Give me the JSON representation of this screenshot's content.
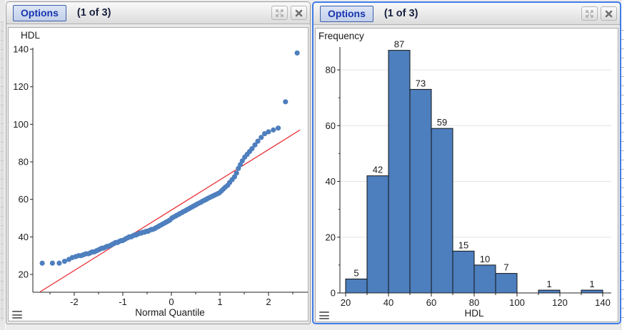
{
  "panels": [
    {
      "id": "qq",
      "header": {
        "options": "Options",
        "counter": "(1 of 3)"
      }
    },
    {
      "id": "hist",
      "header": {
        "options": "Options",
        "counter": "(1 of 3)"
      }
    }
  ],
  "icons": {
    "expand": "expand-arrows-icon",
    "close": "close-icon",
    "menu": "hamburger-menu-icon"
  },
  "colors": {
    "selected_panel_border": "#3f7ce8",
    "marker_blue": "#4e7fbe",
    "bar_blue": "#4d7ebd",
    "ref_line_red": "#e8262d",
    "options_text": "#1634ae"
  },
  "chart_data": [
    {
      "type": "scatter",
      "title": "HDL",
      "xlabel": "Normal Quantile",
      "ylabel": "HDL",
      "xlim": [
        -2.85,
        2.82
      ],
      "ylim": [
        10,
        145
      ],
      "x_ticks": [
        -2,
        -1,
        0,
        1,
        2
      ],
      "x_minor_ticks": [
        -2.5,
        -1.5,
        -0.5,
        0.5,
        1.5,
        2.5
      ],
      "y_ticks": [
        20,
        40,
        60,
        80,
        100,
        120,
        140
      ],
      "grid": false,
      "legend": "none",
      "marker_color": "#4e7fbe",
      "ref_line": {
        "color": "#e8262d",
        "x1": -2.7,
        "y1": 10.8,
        "x2": 2.65,
        "y2": 97
      },
      "points": [
        [
          -2.66,
          26
        ],
        [
          -2.45,
          26
        ],
        [
          -2.31,
          26
        ],
        [
          -2.2,
          27
        ],
        [
          -2.11,
          28
        ],
        [
          -2.04,
          29
        ],
        [
          -1.97,
          29.5
        ],
        [
          -1.91,
          30
        ],
        [
          -1.86,
          30
        ],
        [
          -1.81,
          30.5
        ],
        [
          -1.76,
          31
        ],
        [
          -1.71,
          31
        ],
        [
          -1.67,
          31.5
        ],
        [
          -1.63,
          32
        ],
        [
          -1.59,
          32
        ],
        [
          -1.55,
          32.5
        ],
        [
          -1.51,
          33
        ],
        [
          -1.47,
          33.5
        ],
        [
          -1.43,
          34
        ],
        [
          -1.4,
          34
        ],
        [
          -1.36,
          34.5
        ],
        [
          -1.32,
          35
        ],
        [
          -1.29,
          35
        ],
        [
          -1.25,
          35.5
        ],
        [
          -1.22,
          36
        ],
        [
          -1.18,
          36.5
        ],
        [
          -1.15,
          37
        ],
        [
          -1.11,
          37
        ],
        [
          -1.08,
          37.5
        ],
        [
          -1.04,
          38
        ],
        [
          -1.01,
          38
        ],
        [
          -0.97,
          38.5
        ],
        [
          -0.94,
          39
        ],
        [
          -0.9,
          39.5
        ],
        [
          -0.87,
          40
        ],
        [
          -0.83,
          40
        ],
        [
          -0.8,
          40.5
        ],
        [
          -0.76,
          41
        ],
        [
          -0.73,
          41
        ],
        [
          -0.69,
          41.5
        ],
        [
          -0.66,
          42
        ],
        [
          -0.62,
          42
        ],
        [
          -0.59,
          42.5
        ],
        [
          -0.55,
          42.5
        ],
        [
          -0.52,
          43
        ],
        [
          -0.48,
          43
        ],
        [
          -0.45,
          43.5
        ],
        [
          -0.41,
          44
        ],
        [
          -0.38,
          44
        ],
        [
          -0.34,
          44.5
        ],
        [
          -0.31,
          45
        ],
        [
          -0.27,
          45.5
        ],
        [
          -0.24,
          46
        ],
        [
          -0.2,
          46.5
        ],
        [
          -0.17,
          47
        ],
        [
          -0.13,
          47.5
        ],
        [
          -0.1,
          48
        ],
        [
          -0.06,
          48.5
        ],
        [
          -0.03,
          49
        ],
        [
          0.01,
          50
        ],
        [
          0.04,
          50.5
        ],
        [
          0.08,
          51
        ],
        [
          0.11,
          51.5
        ],
        [
          0.15,
          52
        ],
        [
          0.18,
          52.5
        ],
        [
          0.22,
          53
        ],
        [
          0.25,
          53.5
        ],
        [
          0.29,
          54
        ],
        [
          0.32,
          54.5
        ],
        [
          0.36,
          55
        ],
        [
          0.39,
          55.5
        ],
        [
          0.43,
          56
        ],
        [
          0.46,
          56.5
        ],
        [
          0.5,
          57
        ],
        [
          0.53,
          57.5
        ],
        [
          0.57,
          58
        ],
        [
          0.61,
          58.5
        ],
        [
          0.64,
          59
        ],
        [
          0.68,
          59.5
        ],
        [
          0.72,
          60
        ],
        [
          0.75,
          60.5
        ],
        [
          0.79,
          61
        ],
        [
          0.83,
          61.5
        ],
        [
          0.87,
          62
        ],
        [
          0.91,
          62.5
        ],
        [
          0.95,
          63
        ],
        [
          0.99,
          63.5
        ],
        [
          1.03,
          64.5
        ],
        [
          1.07,
          65.5
        ],
        [
          1.11,
          66.5
        ],
        [
          1.16,
          67.5
        ],
        [
          1.2,
          69
        ],
        [
          1.25,
          70.5
        ],
        [
          1.3,
          72
        ],
        [
          1.34,
          74
        ],
        [
          1.38,
          76.5
        ],
        [
          1.42,
          78.5
        ],
        [
          1.46,
          80.5
        ],
        [
          1.51,
          82.5
        ],
        [
          1.56,
          84
        ],
        [
          1.61,
          85.5
        ],
        [
          1.66,
          87
        ],
        [
          1.72,
          89
        ],
        [
          1.78,
          91
        ],
        [
          1.85,
          93
        ],
        [
          1.92,
          95
        ],
        [
          2.0,
          96
        ],
        [
          2.1,
          97
        ],
        [
          2.2,
          98
        ],
        [
          2.35,
          112
        ],
        [
          2.59,
          138
        ]
      ]
    },
    {
      "type": "bar",
      "title": "Frequency",
      "xlabel": "HDL",
      "ylabel": "Frequency",
      "xlim": [
        17,
        144
      ],
      "ylim": [
        0,
        92
      ],
      "x_ticks": [
        20,
        40,
        60,
        80,
        100,
        120,
        140
      ],
      "x_minor_ticks": [
        30,
        50,
        70,
        90,
        110,
        130
      ],
      "y_ticks": [
        0,
        20,
        40,
        60,
        80
      ],
      "y_minor_ticks": [
        10,
        30,
        50,
        70
      ],
      "gridlines_y": [
        20,
        40,
        60,
        80
      ],
      "grid_color": "#e4e4e4",
      "bar_color": "#4d7ebd",
      "bar_border": "#111111",
      "bins": [
        {
          "x0": 20,
          "x1": 30,
          "count": 5
        },
        {
          "x0": 30,
          "x1": 40,
          "count": 42
        },
        {
          "x0": 40,
          "x1": 50,
          "count": 87
        },
        {
          "x0": 50,
          "x1": 60,
          "count": 73
        },
        {
          "x0": 60,
          "x1": 70,
          "count": 59
        },
        {
          "x0": 70,
          "x1": 80,
          "count": 15
        },
        {
          "x0": 80,
          "x1": 90,
          "count": 10
        },
        {
          "x0": 90,
          "x1": 100,
          "count": 7
        },
        {
          "x0": 110,
          "x1": 120,
          "count": 1
        },
        {
          "x0": 130,
          "x1": 140,
          "count": 1
        }
      ]
    }
  ]
}
